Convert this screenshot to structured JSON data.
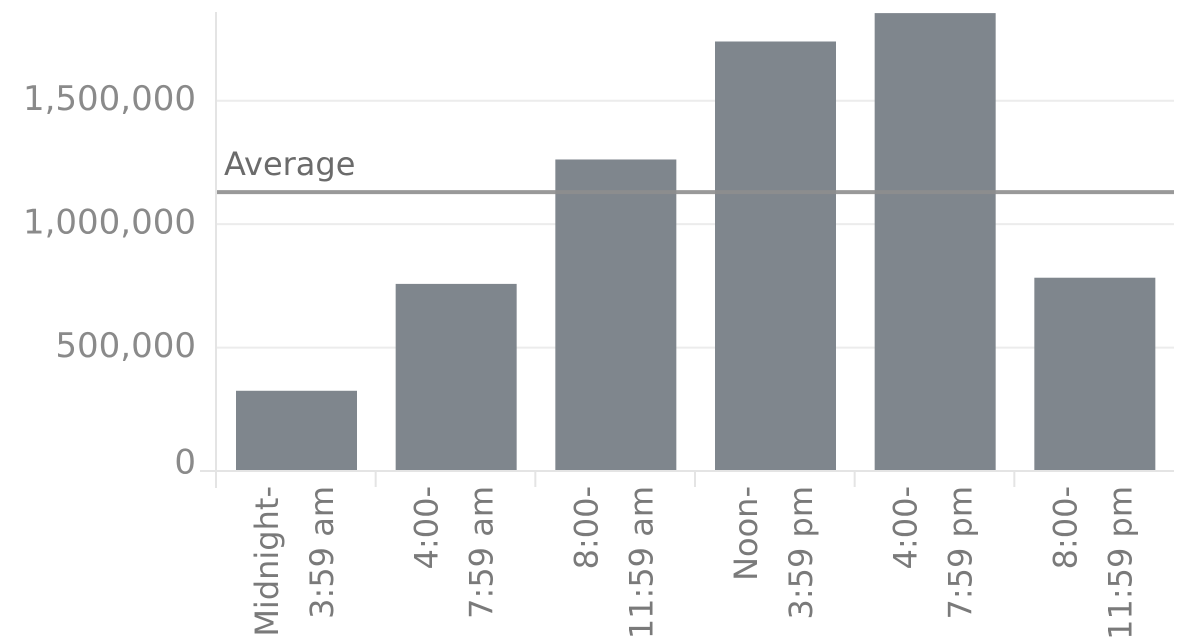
{
  "chart_data": {
    "type": "bar",
    "categories": [
      [
        "Midnight-",
        "3:59 am"
      ],
      [
        "4:00-",
        "7:59 am"
      ],
      [
        "8:00-",
        "11:59 am"
      ],
      [
        "Noon-",
        "3:59 pm"
      ],
      [
        "4:00-",
        "7:59 pm"
      ],
      [
        "8:00-",
        "11:59 pm"
      ]
    ],
    "values": [
      325000,
      758000,
      1262000,
      1740000,
      1855000,
      783000
    ],
    "ylim": [
      0,
      1900000
    ],
    "y_ticks": [
      0,
      500000,
      1000000,
      1500000
    ],
    "y_tick_labels": [
      "0",
      "500,000",
      "1,000,000",
      "1,500,000"
    ],
    "reference_line": {
      "label": "Average",
      "value": 1130000
    },
    "grid": true,
    "bar_color": "#7f868d",
    "ref_line_color": "#8e8e8e",
    "grid_color": "#ececec",
    "xlabel": "",
    "ylabel": ""
  }
}
